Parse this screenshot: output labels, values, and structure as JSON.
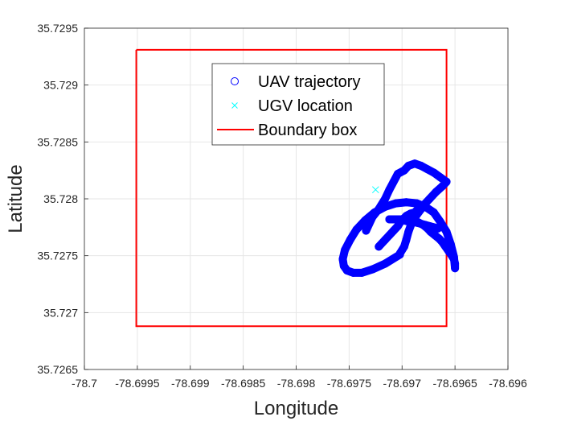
{
  "chart_data": {
    "type": "scatter",
    "title": "",
    "xlabel": "Longitude",
    "ylabel": "Latitude",
    "xlim": [
      -78.7,
      -78.696
    ],
    "ylim": [
      35.7265,
      35.7295
    ],
    "xticks": [
      -78.7,
      -78.6995,
      -78.699,
      -78.6985,
      -78.698,
      -78.6975,
      -78.697,
      -78.6965,
      -78.696
    ],
    "xtick_labels": [
      "-78.7",
      "-78.6995",
      "-78.699",
      "-78.6985",
      "-78.698",
      "-78.6975",
      "-78.697",
      "-78.6965",
      "-78.696"
    ],
    "yticks": [
      35.7265,
      35.727,
      35.7275,
      35.728,
      35.7285,
      35.729,
      35.7295
    ],
    "ytick_labels": [
      "35.7265",
      "35.727",
      "35.7275",
      "35.728",
      "35.7285",
      "35.729",
      "35.7295"
    ],
    "grid": true,
    "legend": {
      "placement": "top-center",
      "entries": [
        "UAV trajectory",
        "UGV location",
        "Boundary box"
      ]
    },
    "series": [
      {
        "name": "UAV trajectory",
        "marker": "circle",
        "color": "#0000ff",
        "segments": [
          {
            "x": [
              -78.69692,
              -78.69688,
              -78.69684,
              -78.6968,
              -78.69676,
              -78.69673,
              -78.69669,
              -78.69665,
              -78.69662,
              -78.69659,
              -78.69656,
              -78.69653,
              -78.69651,
              -78.6965,
              -78.6965,
              -78.69651,
              -78.69654,
              -78.69658,
              -78.69664,
              -78.6967,
              -78.69678,
              -78.69686,
              -78.69696,
              -78.69706,
              -78.69716,
              -78.69726,
              -78.69735,
              -78.69743,
              -78.69749,
              -78.69754,
              -78.69756,
              -78.69755,
              -78.69752,
              -78.69746,
              -78.69738,
              -78.69728,
              -78.69716,
              -78.69702,
              -78.69702,
              -78.69698,
              -78.69696,
              -78.69694,
              -78.69692,
              -78.6969,
              -78.69686,
              -78.69682,
              -78.69678,
              -78.69674,
              -78.69668,
              -78.69662,
              -78.69658,
              -78.69664,
              -78.6967,
              -78.69676,
              -78.69682,
              -78.69688,
              -78.69694,
              -78.69698,
              -78.69704,
              -78.69708,
              -78.69712,
              -78.69716,
              -78.69722,
              -78.69728,
              -78.69734
            ],
            "y": [
              35.72782,
              35.72781,
              35.72779,
              35.72777,
              35.72774,
              35.72771,
              35.72768,
              35.72765,
              35.72762,
              35.72758,
              35.72754,
              35.7275,
              35.72747,
              35.72743,
              35.72739,
              35.72749,
              35.7276,
              35.72771,
              35.7278,
              35.72788,
              35.72793,
              35.72796,
              35.72797,
              35.72796,
              35.72793,
              35.72788,
              35.72781,
              35.72773,
              35.72764,
              35.72755,
              35.72747,
              35.72741,
              35.72737,
              35.72735,
              35.72735,
              35.72738,
              35.72743,
              35.72751,
              35.72752,
              35.72758,
              35.72764,
              35.72771,
              35.72776,
              35.72782,
              35.72786,
              35.72791,
              35.72796,
              35.728,
              35.72806,
              35.72811,
              35.72815,
              35.72819,
              35.72823,
              35.72826,
              35.72829,
              35.72831,
              35.72829,
              35.72825,
              35.72822,
              35.72815,
              35.72808,
              35.728,
              35.72791,
              35.72784,
              35.72772
            ]
          },
          {
            "x": [
              -78.69722,
              -78.69716,
              -78.69712,
              -78.69708,
              -78.69704,
              -78.69702,
              -78.697,
              -78.69698,
              -78.69696,
              -78.69694,
              -78.69692,
              -78.69688,
              -78.69686
            ],
            "y": [
              35.72758,
              35.72764,
              35.72768,
              35.72772,
              35.72776,
              35.72779,
              35.72782,
              35.72783,
              35.72785,
              35.72786,
              35.72787,
              35.72788,
              35.7279
            ]
          },
          {
            "x": [
              -78.69712,
              -78.69706,
              -78.69702,
              -78.69698,
              -78.69694,
              -78.6969,
              -78.69686,
              -78.69682,
              -78.69678,
              -78.69674,
              -78.6967,
              -78.69666
            ],
            "y": [
              35.72782,
              35.72782,
              35.72782,
              35.72781,
              35.7278,
              35.7278,
              35.72779,
              35.72778,
              35.72777,
              35.72776,
              35.72775,
              35.72774
            ]
          }
        ]
      },
      {
        "name": "UGV location",
        "marker": "x",
        "color": "#00ffff",
        "x": [
          -78.69725
        ],
        "y": [
          35.72808
        ]
      },
      {
        "name": "Boundary box",
        "marker": "line",
        "color": "#ff0000",
        "x": [
          -78.69951,
          -78.69658,
          -78.69658,
          -78.69951,
          -78.69951
        ],
        "y": [
          35.72931,
          35.72931,
          35.72688,
          35.72688,
          35.72931
        ]
      }
    ]
  }
}
